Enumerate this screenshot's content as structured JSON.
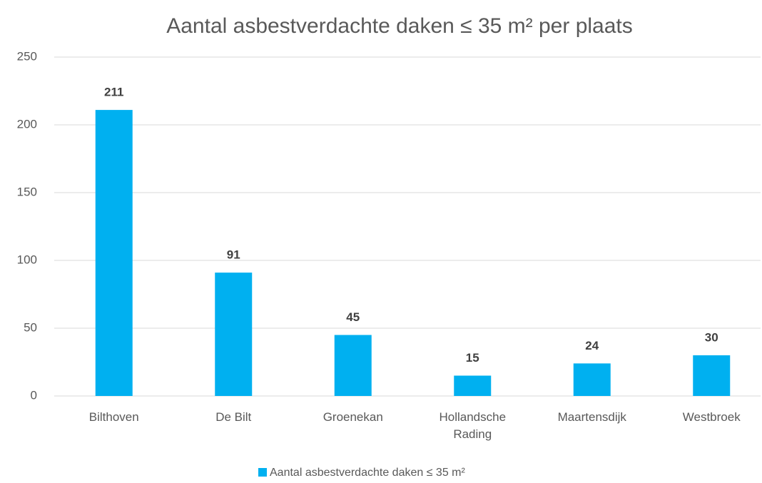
{
  "chart_data": {
    "type": "bar",
    "title": "Aantal asbestverdachte daken ≤ 35 m² per plaats",
    "categories": [
      "Bilthoven",
      "De Bilt",
      "Groenekan",
      "Hollandsche Rading",
      "Maartensdijk",
      "Westbroek"
    ],
    "series": [
      {
        "name": "Aantal asbestverdachte daken ≤ 35 m²",
        "color": "#00b0f0",
        "values": [
          211,
          91,
          45,
          15,
          24,
          30
        ]
      }
    ],
    "ylim": [
      0,
      250
    ],
    "yticks": [
      0,
      50,
      100,
      150,
      200,
      250
    ],
    "grid": true,
    "legend": "bottom"
  }
}
